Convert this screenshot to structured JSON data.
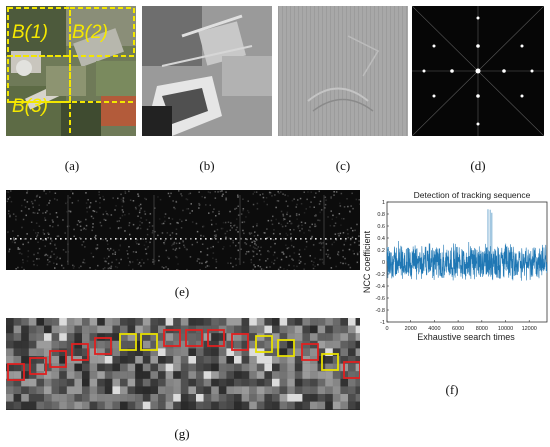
{
  "panel_a": {
    "labels": [
      "B(1)",
      "B(2)",
      "B(3)"
    ],
    "colors": {
      "dashes": "#f2e600",
      "label": "#f5e800"
    }
  },
  "captions": {
    "a": "(a)",
    "b": "(b)",
    "c": "(c)",
    "d": "(d)",
    "e": "(e)",
    "f": "(f)",
    "g": "(g)"
  },
  "panel_g": {
    "box_colors": {
      "red": "#e02020",
      "yellow": "#e8e000"
    },
    "box_sequence": [
      "red",
      "red",
      "red",
      "red",
      "red",
      "yellow",
      "yellow",
      "red",
      "red",
      "red",
      "red",
      "yellow",
      "yellow",
      "red",
      "yellow",
      "red"
    ]
  },
  "chart_data": {
    "type": "line",
    "title": "Detection of tracking sequence",
    "xlabel": "Exhaustive search times",
    "ylabel": "NCC coefficient",
    "xlim": [
      0,
      13500
    ],
    "ylim": [
      -1,
      1
    ],
    "xticks": [
      "0",
      "2000",
      "4000",
      "6000",
      "8000",
      "10000",
      "12000"
    ],
    "yticks": [
      "-1",
      "-0.8",
      "-0.6",
      "-0.4",
      "-0.2",
      "0",
      "0.2",
      "0.4",
      "0.6",
      "0.8",
      "1"
    ],
    "series": [
      {
        "color": "#1f77b4",
        "description_values": {
          "baseline_band": [
            -0.3,
            0.3
          ],
          "peaks": [
            {
              "x": 8520,
              "y": 0.88
            },
            {
              "x": 8700,
              "y": 0.87
            },
            {
              "x": 8850,
              "y": 0.82
            }
          ]
        }
      }
    ]
  }
}
